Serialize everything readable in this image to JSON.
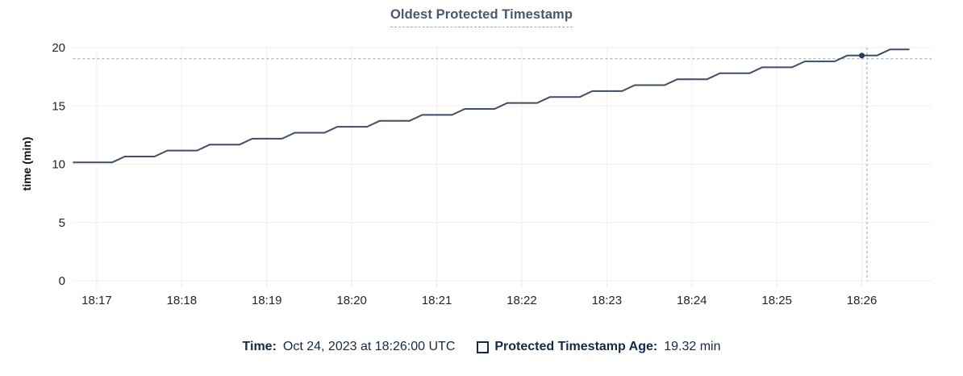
{
  "title": "Oldest Protected Timestamp",
  "colors": {
    "line": "#3e4e66",
    "dot": "#253c59",
    "grid": "#efefef",
    "tick": "#e7e7e7",
    "crosshair": "#a2b5c1",
    "title": "#47586f",
    "axis_text": "#242424",
    "legend_text": "#13294b"
  },
  "chart_data": {
    "type": "line",
    "title": "Oldest Protected Timestamp",
    "xlabel": "",
    "ylabel": "time (min)",
    "ylim": [
      0,
      20
    ],
    "yticks": [
      0,
      5,
      10,
      15,
      20
    ],
    "grid": true,
    "legend_position": "bottom",
    "x_axis_note": "x values are minute offsets from 18:17:00",
    "xlim": [
      -0.284,
      9.82
    ],
    "xticks": [
      {
        "offset": 0,
        "label": "18:17"
      },
      {
        "offset": 1,
        "label": "18:18"
      },
      {
        "offset": 2,
        "label": "18:19"
      },
      {
        "offset": 3,
        "label": "18:20"
      },
      {
        "offset": 4,
        "label": "18:21"
      },
      {
        "offset": 5,
        "label": "18:22"
      },
      {
        "offset": 6,
        "label": "18:23"
      },
      {
        "offset": 7,
        "label": "18:24"
      },
      {
        "offset": 8,
        "label": "18:25"
      },
      {
        "offset": 9,
        "label": "18:26"
      }
    ],
    "series": [
      {
        "name": "Protected Timestamp Age",
        "points": [
          [
            -0.28,
            10.15
          ],
          [
            0.18,
            10.15
          ],
          [
            0.33,
            10.66
          ],
          [
            0.68,
            10.66
          ],
          [
            0.83,
            11.17
          ],
          [
            1.18,
            11.17
          ],
          [
            1.33,
            11.68
          ],
          [
            1.68,
            11.68
          ],
          [
            1.83,
            12.19
          ],
          [
            2.18,
            12.19
          ],
          [
            2.33,
            12.7
          ],
          [
            2.68,
            12.7
          ],
          [
            2.83,
            13.21
          ],
          [
            3.18,
            13.21
          ],
          [
            3.33,
            13.72
          ],
          [
            3.68,
            13.72
          ],
          [
            3.83,
            14.23
          ],
          [
            4.18,
            14.23
          ],
          [
            4.33,
            14.74
          ],
          [
            4.68,
            14.74
          ],
          [
            4.83,
            15.25
          ],
          [
            5.18,
            15.25
          ],
          [
            5.33,
            15.76
          ],
          [
            5.68,
            15.76
          ],
          [
            5.83,
            16.27
          ],
          [
            6.18,
            16.27
          ],
          [
            6.33,
            16.78
          ],
          [
            6.68,
            16.78
          ],
          [
            6.83,
            17.29
          ],
          [
            7.18,
            17.29
          ],
          [
            7.33,
            17.8
          ],
          [
            7.68,
            17.8
          ],
          [
            7.83,
            18.31
          ],
          [
            8.18,
            18.31
          ],
          [
            8.33,
            18.82
          ],
          [
            8.68,
            18.82
          ],
          [
            8.83,
            19.33
          ],
          [
            9.18,
            19.33
          ],
          [
            9.33,
            19.84
          ],
          [
            9.56,
            19.84
          ]
        ]
      }
    ],
    "marker": {
      "offset": 9.0,
      "value": 19.32
    },
    "crosshair": {
      "offset": 9.06,
      "value": 19.05
    }
  },
  "legend": {
    "time_label": "Time:",
    "time_value": "Oct 24, 2023 at 18:26:00 UTC",
    "series_label": "Protected Timestamp Age:",
    "series_value": "19.32 min"
  }
}
